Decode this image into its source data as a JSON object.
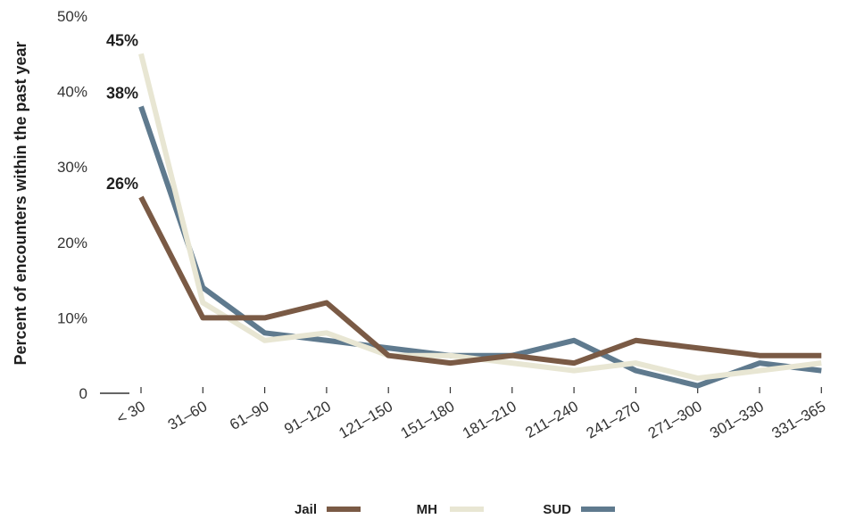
{
  "chart_data": {
    "type": "line",
    "ylabel": "Percent of encounters within the past year",
    "ylim": [
      0,
      50
    ],
    "yticks": [
      "0",
      "10%",
      "20%",
      "30%",
      "40%",
      "50%"
    ],
    "categories": [
      "< 30",
      "31–60",
      "61–90",
      "91–120",
      "121–150",
      "151–180",
      "181–210",
      "211–240",
      "241–270",
      "271–300",
      "301–330",
      "331–365"
    ],
    "grid": false,
    "legend_position": "bottom",
    "series": [
      {
        "name": "Jail",
        "color": "#7a5a45",
        "values": [
          26,
          10,
          10,
          12,
          5,
          4,
          5,
          4,
          7,
          6,
          5,
          5
        ]
      },
      {
        "name": "MH",
        "color": "#e8e6d3",
        "values": [
          45,
          12,
          7,
          8,
          5,
          5,
          4,
          3,
          4,
          2,
          3,
          4
        ]
      },
      {
        "name": "SUD",
        "color": "#5f7a8e",
        "values": [
          38,
          14,
          8,
          7,
          6,
          5,
          5,
          7,
          3,
          1,
          4,
          3
        ]
      }
    ],
    "annotations": [
      {
        "text": "45%",
        "series": "MH",
        "index": 0
      },
      {
        "text": "38%",
        "series": "SUD",
        "index": 0
      },
      {
        "text": "26%",
        "series": "Jail",
        "index": 0
      }
    ]
  }
}
